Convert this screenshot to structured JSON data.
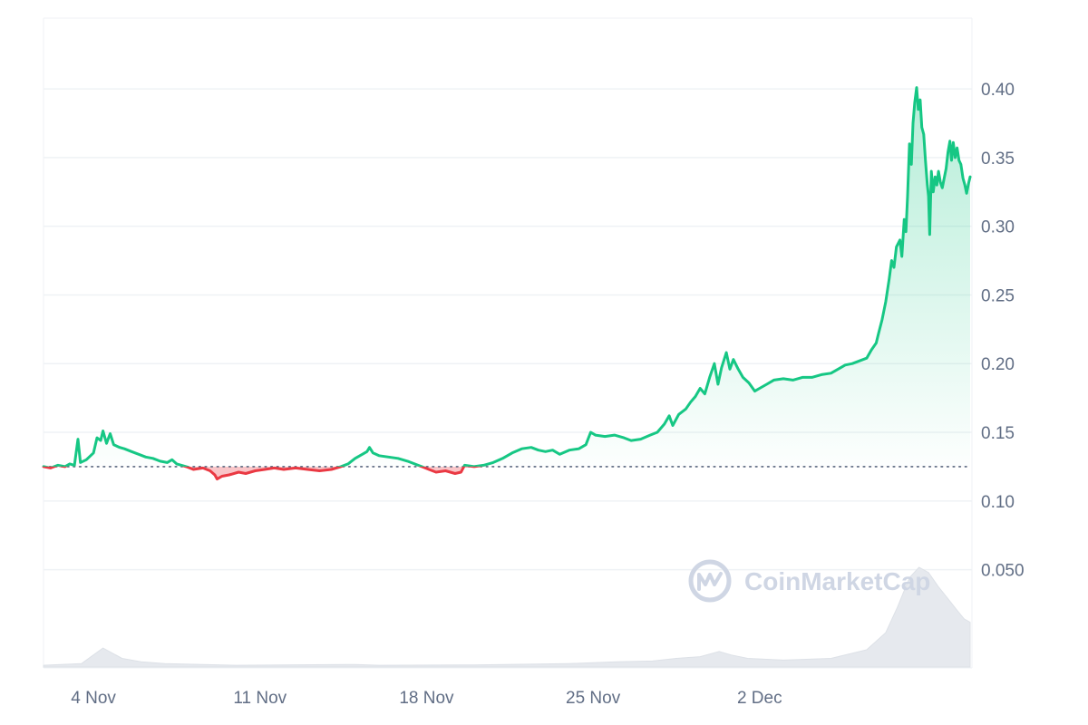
{
  "chart_data": {
    "type": "area",
    "title": "",
    "xlabel": "",
    "ylabel": "",
    "x_ticks": [
      {
        "label": "4 Nov",
        "day": 4
      },
      {
        "label": "11 Nov",
        "day": 11
      },
      {
        "label": "18 Nov",
        "day": 18
      },
      {
        "label": "25 Nov",
        "day": 25
      },
      {
        "label": "2 Dec",
        "day": 32
      }
    ],
    "x_range_days": [
      1.9,
      39.5
    ],
    "y_ticks": [
      "0.10",
      "0.15",
      "0.20",
      "0.25",
      "0.30",
      "0.35",
      "0.40",
      "0.050"
    ],
    "y_tick_values": [
      0.1,
      0.15,
      0.2,
      0.25,
      0.3,
      0.35,
      0.4,
      0.05
    ],
    "ylim": [
      -0.0215,
      0.4515
    ],
    "baseline": 0.125,
    "colors": {
      "up": "#16c784",
      "down": "#ea3943",
      "grid": "#eff2f5",
      "baseline_dots": "#58667e",
      "volume": "#e6e9ee"
    },
    "price_series": {
      "name": "",
      "points": [
        [
          1.9,
          0.125
        ],
        [
          2.2,
          0.124
        ],
        [
          2.5,
          0.126
        ],
        [
          2.8,
          0.125
        ],
        [
          3.0,
          0.127
        ],
        [
          3.2,
          0.126
        ],
        [
          3.35,
          0.145
        ],
        [
          3.45,
          0.128
        ],
        [
          3.7,
          0.13
        ],
        [
          4.0,
          0.135
        ],
        [
          4.15,
          0.146
        ],
        [
          4.3,
          0.144
        ],
        [
          4.4,
          0.151
        ],
        [
          4.55,
          0.142
        ],
        [
          4.7,
          0.149
        ],
        [
          4.85,
          0.141
        ],
        [
          5.1,
          0.139
        ],
        [
          5.3,
          0.138
        ],
        [
          5.6,
          0.136
        ],
        [
          5.9,
          0.134
        ],
        [
          6.2,
          0.132
        ],
        [
          6.5,
          0.131
        ],
        [
          6.8,
          0.129
        ],
        [
          7.1,
          0.128
        ],
        [
          7.3,
          0.13
        ],
        [
          7.5,
          0.127
        ],
        [
          7.9,
          0.125
        ],
        [
          8.2,
          0.123
        ],
        [
          8.6,
          0.124
        ],
        [
          8.9,
          0.122
        ],
        [
          9.1,
          0.119
        ],
        [
          9.2,
          0.116
        ],
        [
          9.4,
          0.118
        ],
        [
          9.7,
          0.119
        ],
        [
          10.1,
          0.121
        ],
        [
          10.4,
          0.12
        ],
        [
          10.8,
          0.122
        ],
        [
          11.2,
          0.123
        ],
        [
          11.6,
          0.124
        ],
        [
          12.0,
          0.123
        ],
        [
          12.5,
          0.124
        ],
        [
          13.0,
          0.123
        ],
        [
          13.5,
          0.122
        ],
        [
          14.0,
          0.123
        ],
        [
          14.4,
          0.125
        ],
        [
          14.7,
          0.127
        ],
        [
          15.0,
          0.131
        ],
        [
          15.3,
          0.134
        ],
        [
          15.5,
          0.136
        ],
        [
          15.6,
          0.139
        ],
        [
          15.75,
          0.135
        ],
        [
          16.0,
          0.133
        ],
        [
          16.4,
          0.132
        ],
        [
          16.8,
          0.131
        ],
        [
          17.2,
          0.129
        ],
        [
          17.5,
          0.127
        ],
        [
          17.8,
          0.125
        ],
        [
          18.1,
          0.123
        ],
        [
          18.4,
          0.121
        ],
        [
          18.8,
          0.122
        ],
        [
          19.2,
          0.12
        ],
        [
          19.45,
          0.121
        ],
        [
          19.6,
          0.126
        ],
        [
          20.0,
          0.125
        ],
        [
          20.4,
          0.126
        ],
        [
          20.8,
          0.128
        ],
        [
          21.2,
          0.131
        ],
        [
          21.6,
          0.135
        ],
        [
          22.0,
          0.138
        ],
        [
          22.4,
          0.139
        ],
        [
          22.7,
          0.137
        ],
        [
          23.0,
          0.136
        ],
        [
          23.3,
          0.137
        ],
        [
          23.6,
          0.134
        ],
        [
          24.0,
          0.137
        ],
        [
          24.4,
          0.138
        ],
        [
          24.7,
          0.141
        ],
        [
          24.9,
          0.15
        ],
        [
          25.1,
          0.148
        ],
        [
          25.5,
          0.147
        ],
        [
          25.9,
          0.148
        ],
        [
          26.3,
          0.146
        ],
        [
          26.6,
          0.144
        ],
        [
          27.0,
          0.145
        ],
        [
          27.4,
          0.148
        ],
        [
          27.7,
          0.15
        ],
        [
          28.0,
          0.156
        ],
        [
          28.2,
          0.162
        ],
        [
          28.35,
          0.155
        ],
        [
          28.6,
          0.163
        ],
        [
          28.9,
          0.167
        ],
        [
          29.1,
          0.172
        ],
        [
          29.3,
          0.176
        ],
        [
          29.5,
          0.182
        ],
        [
          29.7,
          0.178
        ],
        [
          29.9,
          0.19
        ],
        [
          30.1,
          0.2
        ],
        [
          30.25,
          0.185
        ],
        [
          30.4,
          0.197
        ],
        [
          30.6,
          0.208
        ],
        [
          30.75,
          0.196
        ],
        [
          30.9,
          0.203
        ],
        [
          31.1,
          0.196
        ],
        [
          31.3,
          0.19
        ],
        [
          31.55,
          0.186
        ],
        [
          31.8,
          0.18
        ],
        [
          32.0,
          0.182
        ],
        [
          32.3,
          0.185
        ],
        [
          32.6,
          0.188
        ],
        [
          33.0,
          0.189
        ],
        [
          33.4,
          0.188
        ],
        [
          33.8,
          0.19
        ],
        [
          34.2,
          0.19
        ],
        [
          34.6,
          0.192
        ],
        [
          35.0,
          0.193
        ],
        [
          35.3,
          0.196
        ],
        [
          35.6,
          0.199
        ],
        [
          35.9,
          0.2
        ],
        [
          36.2,
          0.202
        ],
        [
          36.5,
          0.204
        ],
        [
          36.7,
          0.21
        ],
        [
          36.9,
          0.215
        ],
        [
          37.0,
          0.222
        ],
        [
          37.15,
          0.232
        ],
        [
          37.3,
          0.245
        ],
        [
          37.45,
          0.262
        ],
        [
          37.55,
          0.275
        ],
        [
          37.65,
          0.27
        ],
        [
          37.75,
          0.285
        ],
        [
          37.9,
          0.29
        ],
        [
          37.98,
          0.278
        ],
        [
          38.08,
          0.305
        ],
        [
          38.15,
          0.296
        ],
        [
          38.22,
          0.322
        ],
        [
          38.3,
          0.36
        ],
        [
          38.38,
          0.345
        ],
        [
          38.45,
          0.375
        ],
        [
          38.52,
          0.39
        ],
        [
          38.6,
          0.401
        ],
        [
          38.67,
          0.385
        ],
        [
          38.75,
          0.392
        ],
        [
          38.82,
          0.372
        ],
        [
          38.9,
          0.367
        ],
        [
          38.97,
          0.348
        ],
        [
          39.05,
          0.33
        ],
        [
          39.1,
          0.322
        ],
        [
          39.15,
          0.294
        ],
        [
          39.22,
          0.34
        ],
        [
          39.3,
          0.325
        ],
        [
          39.38,
          0.336
        ],
        [
          39.45,
          0.33
        ],
        [
          39.52,
          0.34
        ],
        [
          39.6,
          0.332
        ],
        [
          39.68,
          0.328
        ],
        [
          39.76,
          0.335
        ],
        [
          39.84,
          0.342
        ],
        [
          39.92,
          0.354
        ],
        [
          40.0,
          0.362
        ],
        [
          40.07,
          0.348
        ],
        [
          40.14,
          0.361
        ],
        [
          40.22,
          0.35
        ],
        [
          40.3,
          0.357
        ],
        [
          40.38,
          0.348
        ],
        [
          40.46,
          0.345
        ],
        [
          40.55,
          0.335
        ],
        [
          40.63,
          0.33
        ],
        [
          40.7,
          0.324
        ],
        [
          40.78,
          0.331
        ],
        [
          40.85,
          0.336
        ]
      ]
    },
    "volume_series": {
      "name": "",
      "points": [
        [
          1.9,
          0.001
        ],
        [
          3.5,
          0.002
        ],
        [
          4.0,
          0.007
        ],
        [
          4.4,
          0.011
        ],
        [
          4.8,
          0.008
        ],
        [
          5.2,
          0.005
        ],
        [
          6.0,
          0.003
        ],
        [
          7.0,
          0.002
        ],
        [
          10.0,
          0.001
        ],
        [
          15.0,
          0.0015
        ],
        [
          16.0,
          0.001
        ],
        [
          20.0,
          0.0012
        ],
        [
          24.0,
          0.002
        ],
        [
          26.0,
          0.003
        ],
        [
          27.5,
          0.0035
        ],
        [
          28.5,
          0.005
        ],
        [
          29.5,
          0.006
        ],
        [
          30.3,
          0.009
        ],
        [
          30.8,
          0.007
        ],
        [
          31.5,
          0.005
        ],
        [
          33.0,
          0.004
        ],
        [
          35.0,
          0.005
        ],
        [
          36.5,
          0.01
        ],
        [
          37.3,
          0.02
        ],
        [
          37.8,
          0.035
        ],
        [
          38.3,
          0.052
        ],
        [
          38.7,
          0.058
        ],
        [
          39.1,
          0.055
        ],
        [
          39.5,
          0.047
        ],
        [
          39.9,
          0.04
        ],
        [
          40.3,
          0.033
        ],
        [
          40.6,
          0.028
        ],
        [
          40.85,
          0.026
        ]
      ]
    },
    "watermark": "CoinMarketCap",
    "grid": true,
    "legend": "none"
  }
}
